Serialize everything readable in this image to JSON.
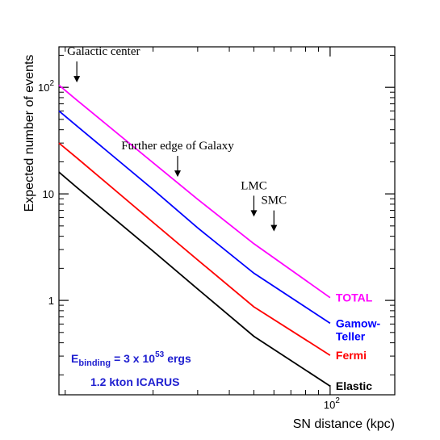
{
  "chart_data": {
    "type": "line",
    "xlabel": "SN distance (kpc)",
    "ylabel": "Expected number of events",
    "x_scale": "log",
    "y_scale": "log",
    "xlim": [
      8.5,
      180
    ],
    "ylim": [
      0.13,
      240
    ],
    "x_ticks": [
      {
        "value": 100,
        "mantissa": "10",
        "exponent": "2"
      }
    ],
    "y_ticks": [
      {
        "value": 1,
        "label": "1"
      },
      {
        "value": 10,
        "label": "10"
      },
      {
        "value": 100,
        "mantissa": "10",
        "exponent": "2"
      }
    ],
    "series": [
      {
        "name": "TOTAL",
        "label_lines": [
          "TOTAL"
        ],
        "color": "#ff00ff",
        "x": [
          8.5,
          10,
          20,
          30,
          50,
          100
        ],
        "y": [
          105,
          76,
          19.6,
          8.9,
          3.4,
          1.06
        ]
      },
      {
        "name": "Gamow-Teller",
        "label_lines": [
          "Gamow-",
          "Teller"
        ],
        "color": "#0000ff",
        "x": [
          8.5,
          10,
          20,
          30,
          50,
          100
        ],
        "y": [
          60,
          43.5,
          11.0,
          4.8,
          1.8,
          0.61
        ]
      },
      {
        "name": "Fermi",
        "label_lines": [
          "Fermi"
        ],
        "color": "#ff0000",
        "x": [
          8.5,
          10,
          20,
          30,
          50,
          100
        ],
        "y": [
          30,
          21.8,
          5.4,
          2.4,
          0.87,
          0.305
        ]
      },
      {
        "name": "Elastic",
        "label_lines": [
          "Elastic"
        ],
        "color": "#000000",
        "x": [
          8.5,
          10,
          20,
          30,
          50,
          100
        ],
        "y": [
          16,
          11.5,
          2.9,
          1.28,
          0.46,
          0.157
        ]
      }
    ],
    "annotations": [
      {
        "text": "Galactic center",
        "x": 10,
        "y": 100
      },
      {
        "text": "Further edge of Galaxy",
        "x": 25,
        "y": 13
      },
      {
        "text": "LMC",
        "x": 50,
        "y": 5.5
      },
      {
        "text": "SMC",
        "x": 60,
        "y": 4
      }
    ],
    "info": {
      "binding_prefix": "E",
      "binding_sub": "binding",
      "binding_value": "= 3 x 10",
      "binding_exp": "53",
      "binding_unit": "ergs",
      "detector": "1.2 kton ICARUS",
      "color": "#2020d0"
    },
    "grid": false,
    "legend": "inline labels at line ends"
  }
}
